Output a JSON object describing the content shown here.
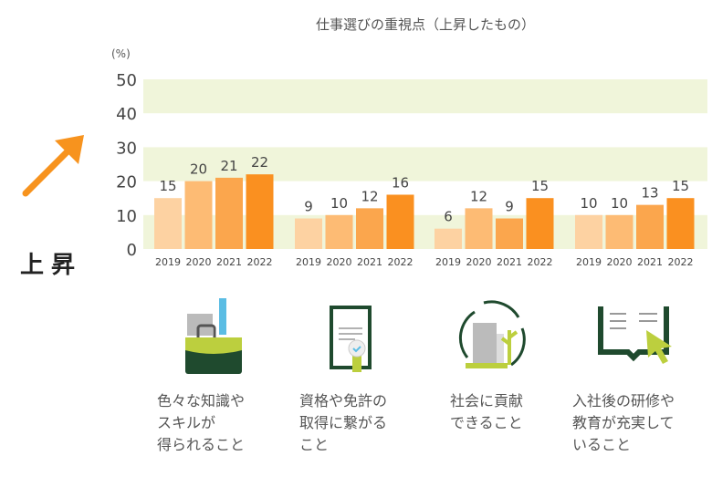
{
  "chart_data": {
    "type": "bar",
    "title": "仕事選びの重視点（上昇したもの）",
    "ylabel": "(%)",
    "ylim": [
      0,
      50
    ],
    "yticks": [
      0,
      10,
      20,
      30,
      40,
      50
    ],
    "grid_bands": "alternating green",
    "years": [
      "2019",
      "2020",
      "2021",
      "2022"
    ],
    "colors": [
      "#fdd2a2",
      "#fdbb74",
      "#fba64d",
      "#fa9020"
    ],
    "band_color": "#f0f5da",
    "groups": [
      {
        "label": "色々な知識や\nスキルが\n得られること",
        "values": [
          15,
          20,
          21,
          22
        ],
        "icon": "briefcase-icon"
      },
      {
        "label": "資格や免許の\n取得に繋がる\nこと",
        "values": [
          9,
          10,
          12,
          16
        ],
        "icon": "certificate-icon"
      },
      {
        "label": "社会に貢献\nできること",
        "values": [
          6,
          12,
          9,
          15
        ],
        "icon": "society-cycle-icon"
      },
      {
        "label": "入社後の研修や\n教育が充実して\nいること",
        "values": [
          10,
          10,
          13,
          15
        ],
        "icon": "book-cursor-icon"
      }
    ]
  },
  "side_label": "上昇",
  "accent": "#f7931e"
}
